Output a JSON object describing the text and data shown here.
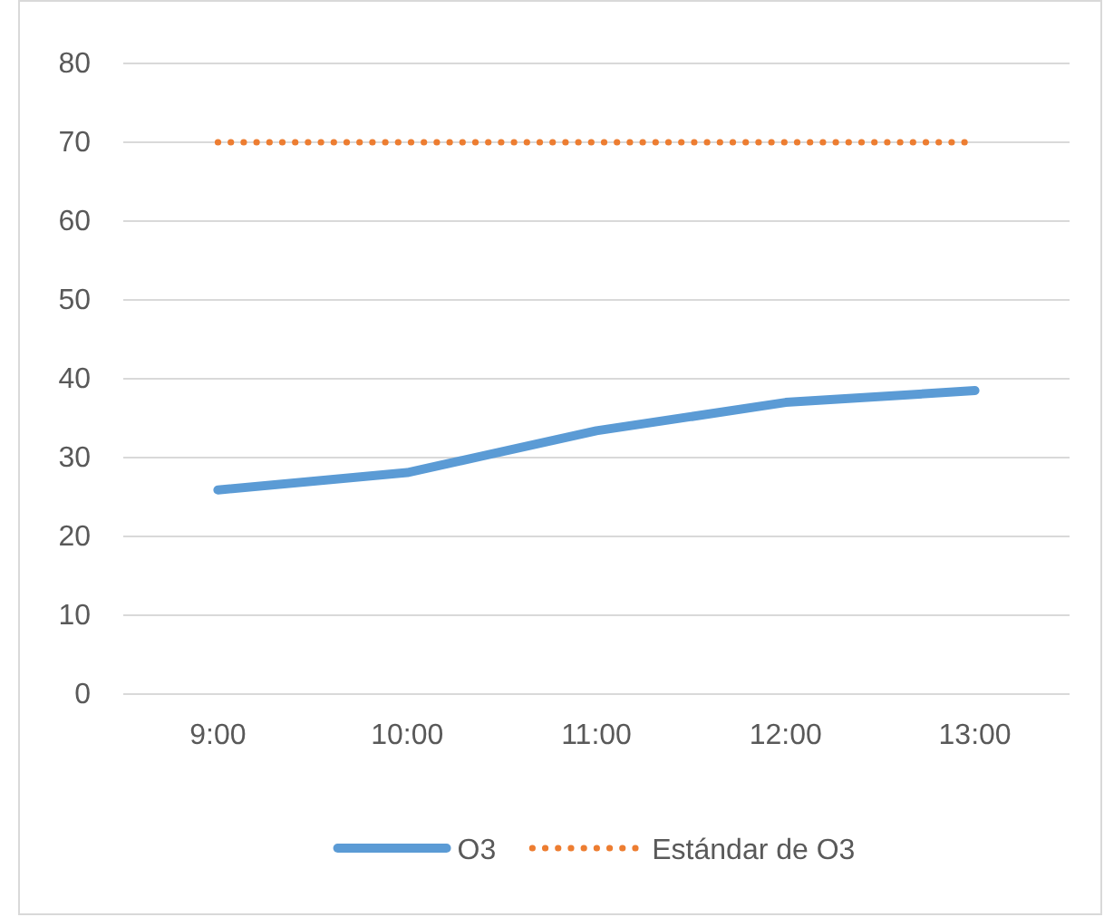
{
  "chart_data": {
    "type": "line",
    "categories": [
      "9:00",
      "10:00",
      "11:00",
      "12:00",
      "13:00"
    ],
    "series": [
      {
        "name": "O3",
        "color": "#5b9bd5",
        "values": [
          25.9,
          28.1,
          33.4,
          37.0,
          38.5
        ],
        "line_style": "solid"
      },
      {
        "name": "Estándar de O3",
        "color": "#ed7d31",
        "values": [
          70,
          70,
          70,
          70,
          70
        ],
        "line_style": "dotted"
      }
    ],
    "ylim": [
      0,
      80
    ],
    "yticks": [
      0,
      10,
      20,
      30,
      40,
      50,
      60,
      70,
      80
    ],
    "grid": "y",
    "legend": "bottom",
    "marker": "none"
  }
}
